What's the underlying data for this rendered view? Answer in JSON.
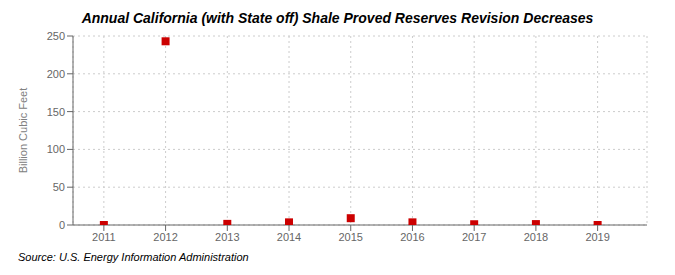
{
  "chart_data": {
    "type": "scatter",
    "title": "Annual California (with State off) Shale Proved Reserves Revision Decreases",
    "y_label": "Billion Cubic Feet",
    "annotations": [
      "Source: U.S. Energy Information Administration"
    ],
    "x": [
      2011,
      2012,
      2013,
      2014,
      2015,
      2016,
      2017,
      2018,
      2019
    ],
    "values": [
      0,
      243,
      1.5,
      3.5,
      9,
      3.5,
      1.0,
      1.2,
      0
    ],
    "color": "#cc0000",
    "marker": "square",
    "xlim": [
      2010.5,
      2019.8
    ],
    "ylim": [
      0,
      250
    ],
    "xticks": [
      2011,
      2012,
      2013,
      2014,
      2015,
      2016,
      2017,
      2018,
      2019
    ],
    "yticks": [
      0,
      50,
      100,
      150,
      200,
      250
    ],
    "grid": true
  }
}
